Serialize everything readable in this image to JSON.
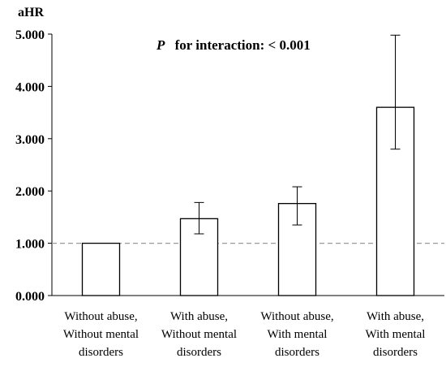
{
  "chart_data": {
    "type": "bar",
    "ylabel": "aHR",
    "ylim": [
      0,
      5
    ],
    "yticks": [
      "0.000",
      "1.000",
      "2.000",
      "3.000",
      "4.000",
      "5.000"
    ],
    "categories": [
      [
        "Without abuse,",
        "Without mental",
        "disorders"
      ],
      [
        "With abuse,",
        "Without mental",
        "disorders"
      ],
      [
        "Without abuse,",
        "With mental",
        "disorders"
      ],
      [
        "With abuse,",
        "With mental",
        "disorders"
      ]
    ],
    "values": [
      1.0,
      1.47,
      1.76,
      3.6
    ],
    "error_low": [
      1.0,
      1.18,
      1.35,
      2.8
    ],
    "error_high": [
      1.0,
      1.78,
      2.08,
      4.98
    ],
    "reference_line": 1.0,
    "annotation": {
      "italic": "P",
      "text": "for interaction: < 0.001"
    },
    "colors": {
      "bar_fill": "#ffffff",
      "bar_stroke": "#000000",
      "reference_line": "#9a9a9a"
    }
  }
}
